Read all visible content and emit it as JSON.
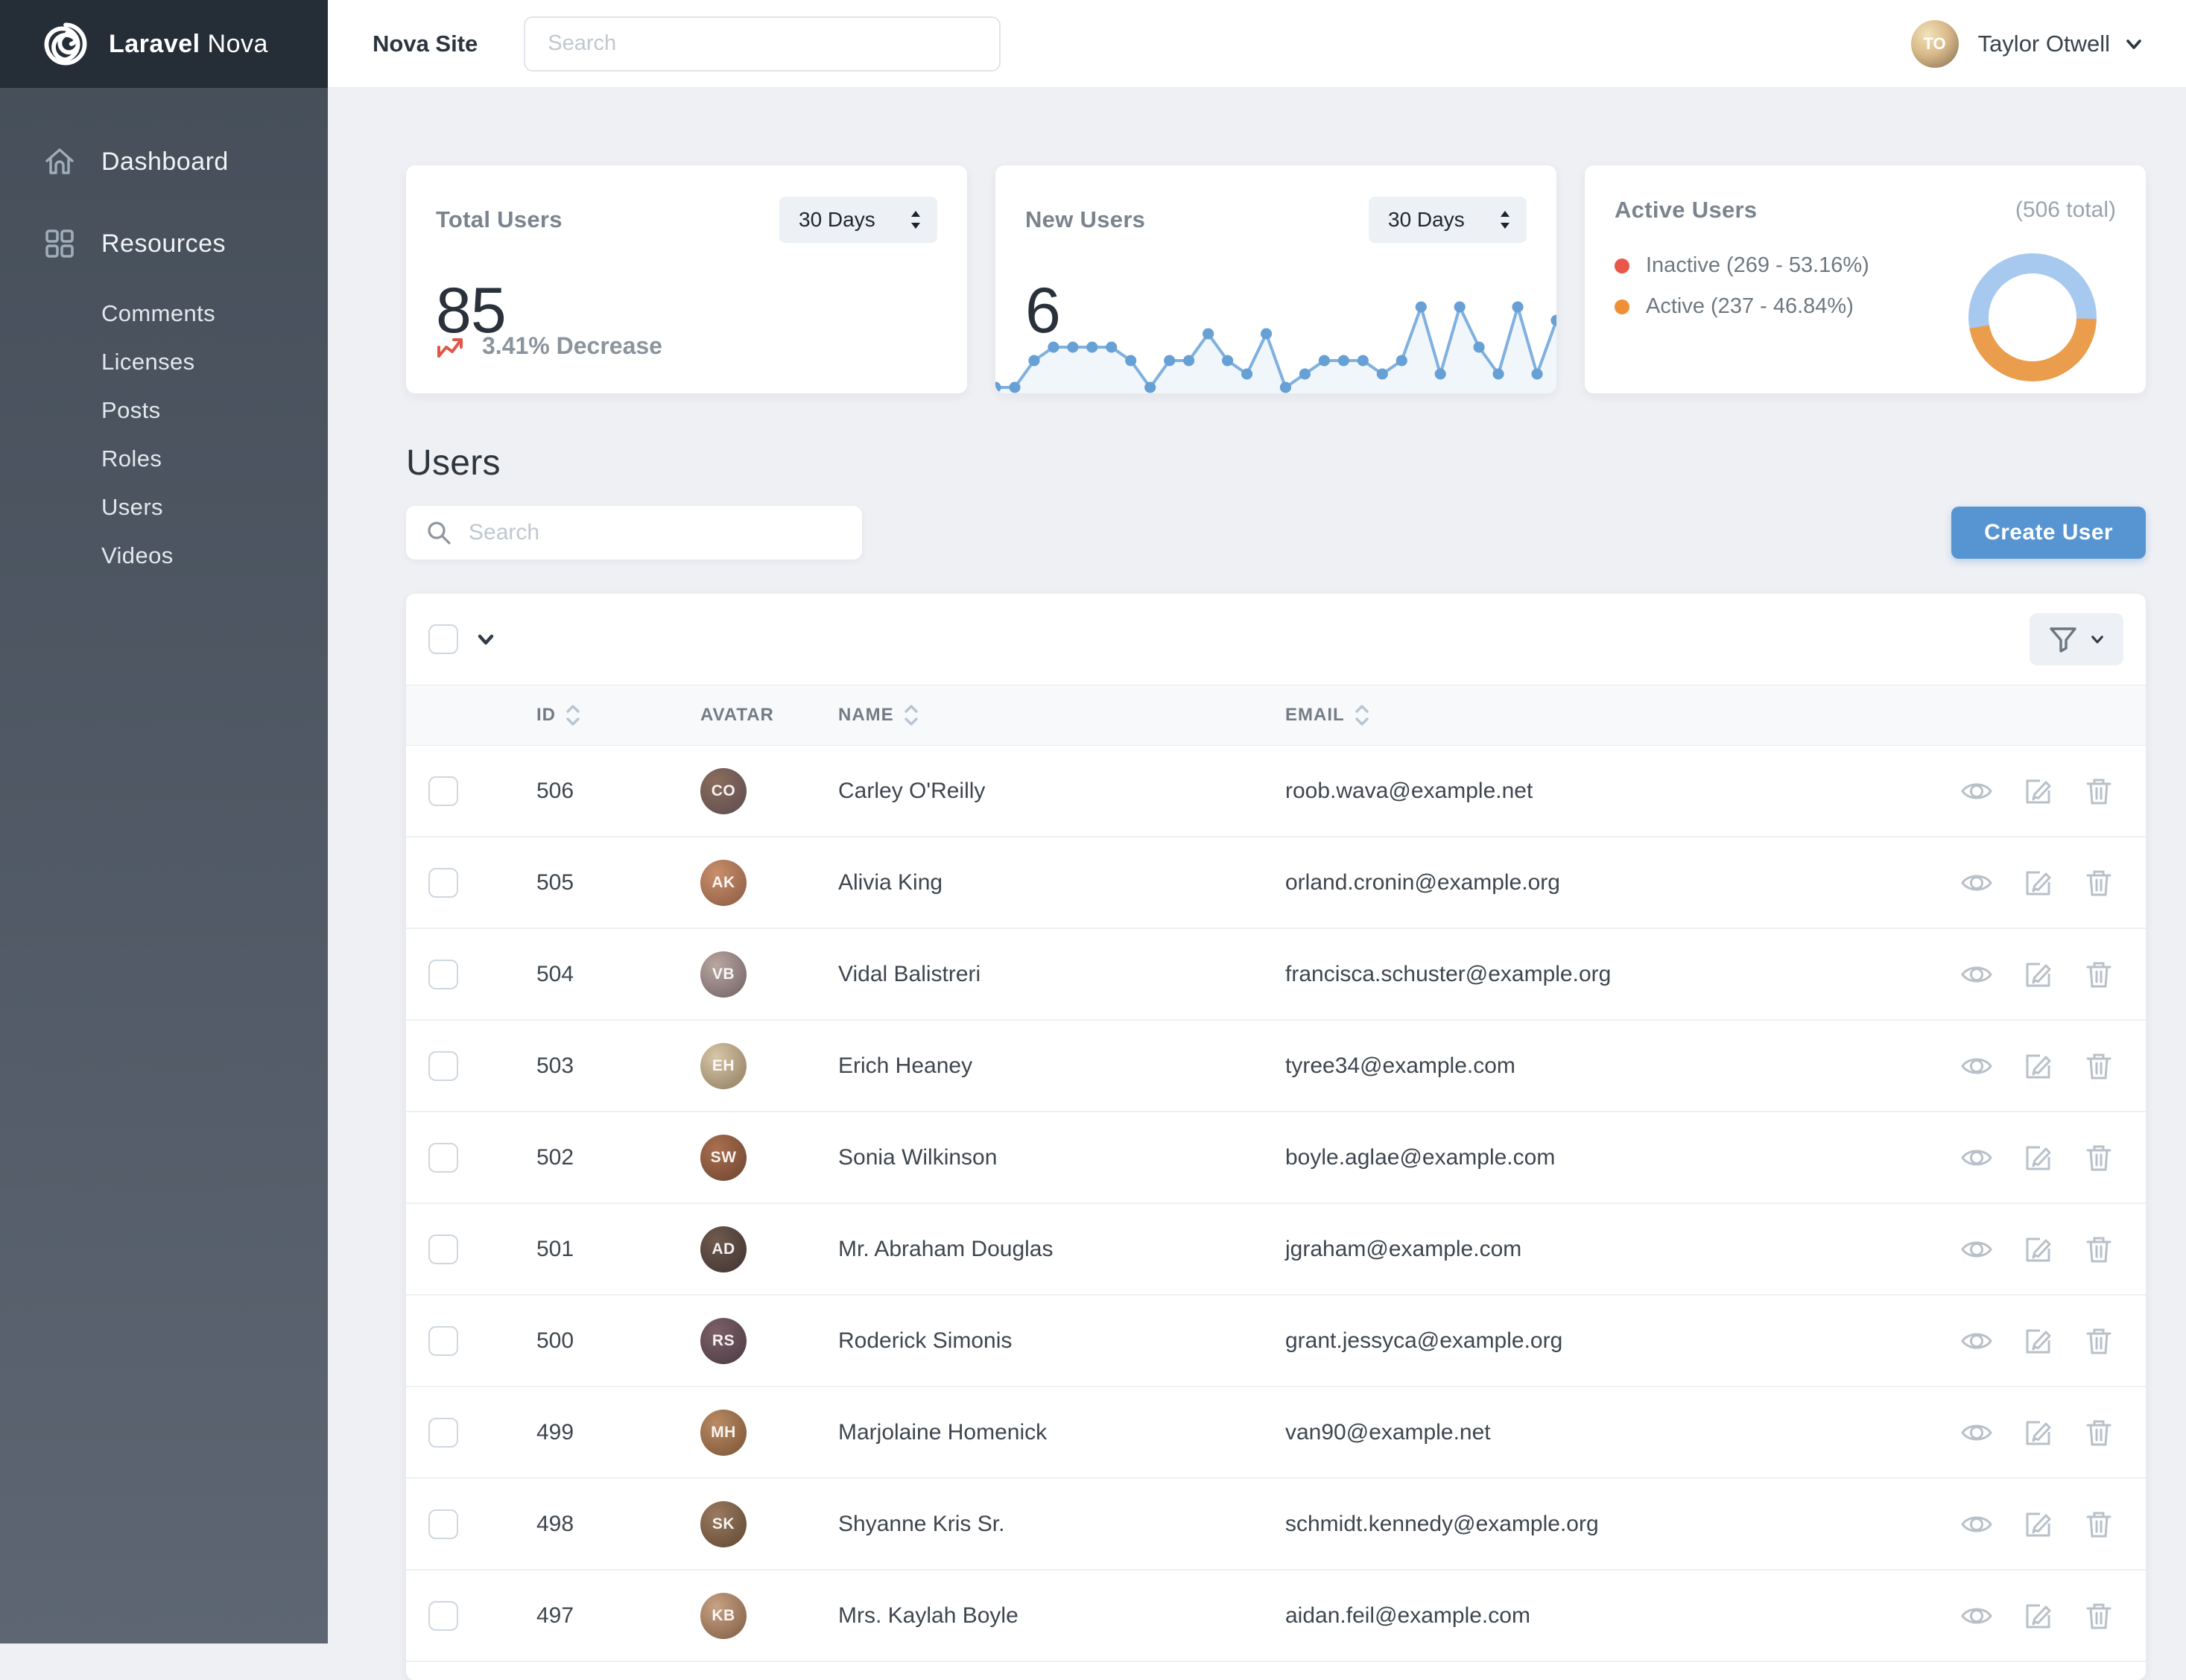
{
  "brand": {
    "name_bold": "Laravel",
    "name_light": "Nova"
  },
  "topbar": {
    "site_link": "Nova Site",
    "search_placeholder": "Search",
    "user_name": "Taylor Otwell",
    "user_initials": "TO"
  },
  "sidebar": {
    "dashboard_label": "Dashboard",
    "resources_label": "Resources",
    "resource_links": [
      "Comments",
      "Licenses",
      "Posts",
      "Roles",
      "Users",
      "Videos"
    ]
  },
  "cards": {
    "total_users": {
      "title": "Total Users",
      "range": "30 Days",
      "value": "85",
      "trend": "3.41% Decrease",
      "trend_color": "#e0564a"
    },
    "new_users": {
      "title": "New Users",
      "range": "30 Days",
      "value": "6"
    },
    "active_users": {
      "title": "Active Users",
      "total": "(506 total)",
      "legend": [
        {
          "label": "Inactive (269 - 53.16%)",
          "color": "#e8574a"
        },
        {
          "label": "Active (237 - 46.84%)",
          "color": "#ef9036"
        }
      ]
    }
  },
  "chart_data": [
    {
      "type": "line",
      "title": "New Users (30 Days)",
      "x": [
        1,
        2,
        3,
        4,
        5,
        6,
        7,
        8,
        9,
        10,
        11,
        12,
        13,
        14,
        15,
        16,
        17,
        18,
        19,
        20,
        21,
        22,
        23,
        24,
        25,
        26,
        27,
        28,
        29,
        30
      ],
      "values": [
        0,
        0,
        2,
        3,
        3,
        3,
        3,
        2,
        0,
        2,
        2,
        4,
        2,
        1,
        4,
        0,
        1,
        2,
        2,
        2,
        1,
        2,
        6,
        1,
        6,
        3,
        1,
        6,
        1,
        5
      ],
      "ylim": [
        0,
        6
      ],
      "grid": false,
      "legend_position": "none",
      "line_color": "#7fb0e0",
      "point_color": "#66a0d5",
      "fill_color": "#f1f6fb"
    },
    {
      "type": "pie",
      "title": "Active Users",
      "total": 506,
      "slices": [
        {
          "label": "Inactive",
          "value": 269,
          "pct": 53.16,
          "color": "#a7c9ef"
        },
        {
          "label": "Active",
          "value": 237,
          "pct": 46.84,
          "color": "#eb9d4e"
        }
      ],
      "donut": true,
      "start_angle_deg": 260
    }
  ],
  "users_section": {
    "heading": "Users",
    "search_placeholder": "Search",
    "create_button": "Create User"
  },
  "table": {
    "columns": [
      "ID",
      "AVATAR",
      "NAME",
      "EMAIL"
    ],
    "sortable_columns": [
      "ID",
      "NAME",
      "EMAIL"
    ],
    "rows": [
      {
        "id": "506",
        "name": "Carley O'Reilly",
        "email": "roob.wava@example.net"
      },
      {
        "id": "505",
        "name": "Alivia King",
        "email": "orland.cronin@example.org"
      },
      {
        "id": "504",
        "name": "Vidal Balistreri",
        "email": "francisca.schuster@example.org"
      },
      {
        "id": "503",
        "name": "Erich Heaney",
        "email": "tyree34@example.com"
      },
      {
        "id": "502",
        "name": "Sonia Wilkinson",
        "email": "boyle.aglae@example.com"
      },
      {
        "id": "501",
        "name": "Mr. Abraham Douglas",
        "email": "jgraham@example.com"
      },
      {
        "id": "500",
        "name": "Roderick Simonis",
        "email": "grant.jessyca@example.org"
      },
      {
        "id": "499",
        "name": "Marjolaine Homenick",
        "email": "van90@example.net"
      },
      {
        "id": "498",
        "name": "Shyanne Kris Sr.",
        "email": "schmidt.kennedy@example.org"
      },
      {
        "id": "497",
        "name": "Mrs. Kaylah Boyle",
        "email": "aidan.feil@example.com"
      }
    ]
  }
}
